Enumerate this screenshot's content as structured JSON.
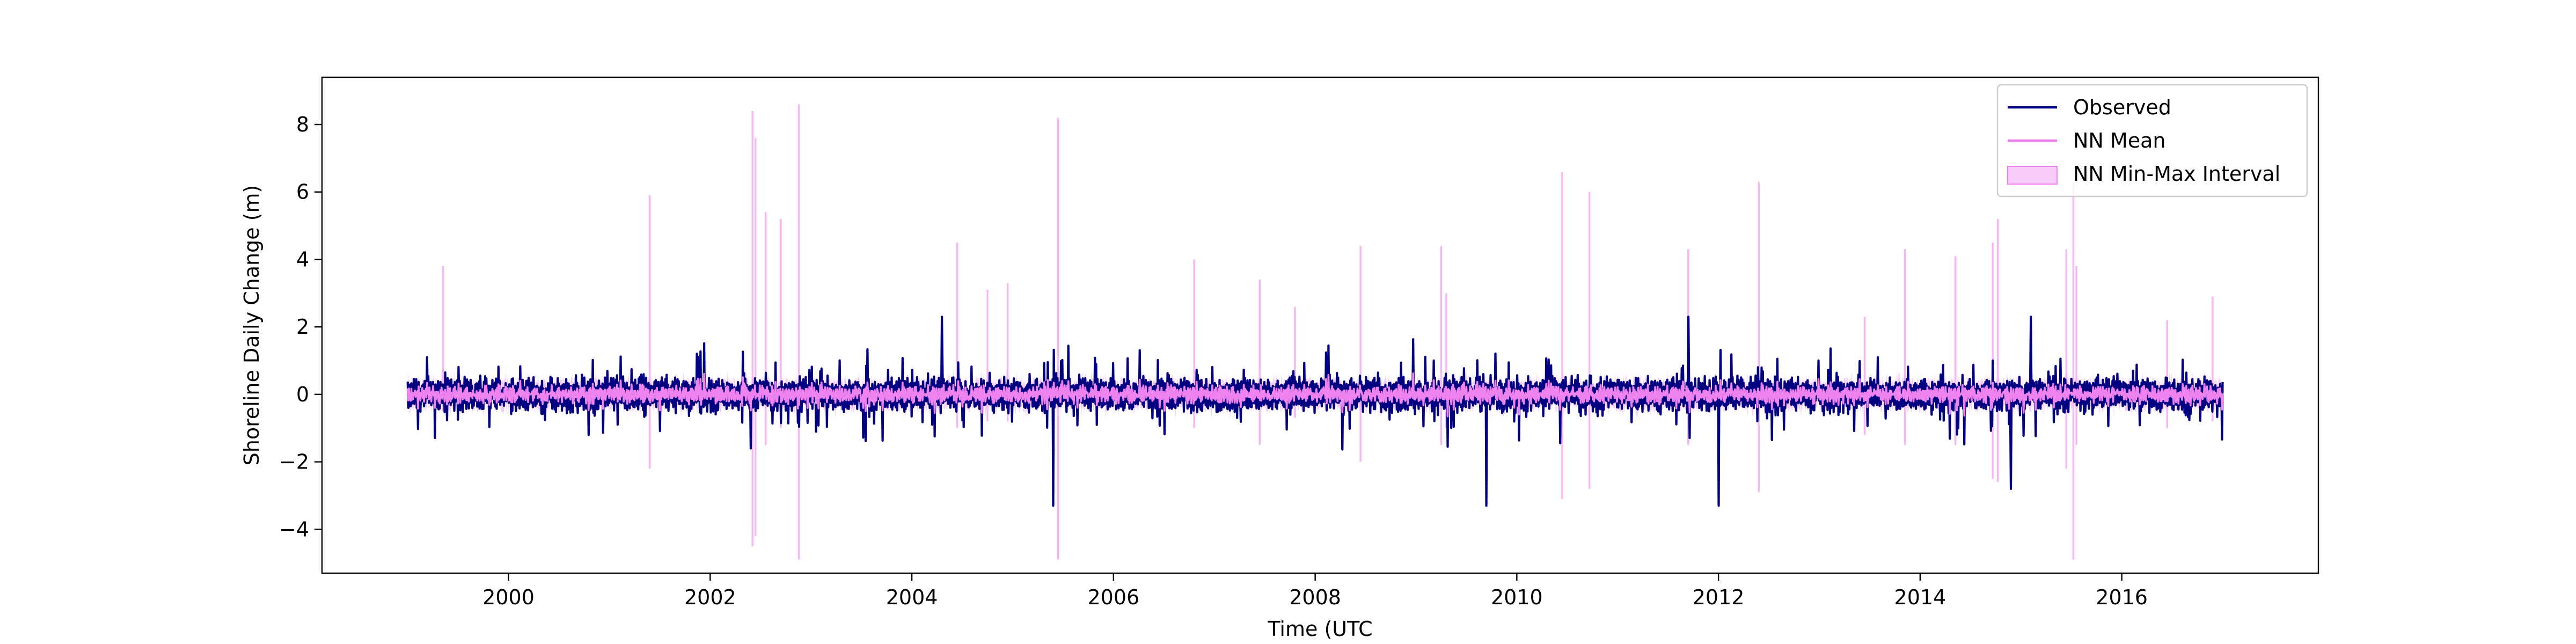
{
  "chart_data": {
    "type": "line",
    "title": "",
    "xlabel": "Time (UTC",
    "ylabel": "Shoreline Daily Change (m)",
    "xlim": [
      1998.15,
      2017.95
    ],
    "ylim": [
      -5.3,
      9.4
    ],
    "x_ticks": [
      2000,
      2002,
      2004,
      2006,
      2008,
      2010,
      2012,
      2014,
      2016
    ],
    "x_tick_labels": [
      "2000",
      "2002",
      "2004",
      "2006",
      "2008",
      "2010",
      "2012",
      "2014",
      "2016"
    ],
    "y_ticks": [
      -4,
      -2,
      0,
      2,
      4,
      6,
      8
    ],
    "y_tick_labels": [
      "−4",
      "−2",
      "0",
      "2",
      "4",
      "6",
      "8"
    ],
    "x_range": [
      1999.0,
      2017.0
    ],
    "grid": false,
    "legend_position": "top-right",
    "series": [
      {
        "name": "Observed",
        "kind": "line",
        "color": "#000080",
        "amplitude_note": "daily fluctuation, mostly within -2 to 2"
      },
      {
        "name": "NN Mean",
        "kind": "line",
        "color": "#ee82ee"
      },
      {
        "name": "NN Min-Max Interval",
        "kind": "band",
        "color": "#f5b8f5"
      }
    ],
    "observed_extremes": [
      {
        "x": 2005.4,
        "y": -3.3
      },
      {
        "x": 2009.7,
        "y": -3.3
      },
      {
        "x": 2012.0,
        "y": -3.3
      },
      {
        "x": 2014.9,
        "y": -2.8
      },
      {
        "x": 2004.3,
        "y": 2.3
      },
      {
        "x": 2011.7,
        "y": 2.3
      },
      {
        "x": 2015.1,
        "y": 2.3
      }
    ],
    "interval_spikes": [
      {
        "x": 1999.35,
        "low": -0.5,
        "high": 3.8
      },
      {
        "x": 2001.4,
        "low": -2.2,
        "high": 5.9
      },
      {
        "x": 2002.42,
        "low": -4.5,
        "high": 8.4
      },
      {
        "x": 2002.45,
        "low": -4.2,
        "high": 7.6
      },
      {
        "x": 2002.55,
        "low": -1.5,
        "high": 5.4
      },
      {
        "x": 2002.7,
        "low": -1.0,
        "high": 5.2
      },
      {
        "x": 2002.88,
        "low": -4.9,
        "high": 8.6
      },
      {
        "x": 2004.45,
        "low": -1.0,
        "high": 4.5
      },
      {
        "x": 2004.75,
        "low": -0.8,
        "high": 3.1
      },
      {
        "x": 2004.95,
        "low": -0.8,
        "high": 3.3
      },
      {
        "x": 2005.45,
        "low": -4.9,
        "high": 8.2
      },
      {
        "x": 2006.8,
        "low": -1.0,
        "high": 4.0
      },
      {
        "x": 2007.45,
        "low": -1.5,
        "high": 3.4
      },
      {
        "x": 2007.8,
        "low": -0.7,
        "high": 2.6
      },
      {
        "x": 2008.45,
        "low": -2.0,
        "high": 4.4
      },
      {
        "x": 2009.25,
        "low": -1.5,
        "high": 4.4
      },
      {
        "x": 2009.3,
        "low": -1.0,
        "high": 3.0
      },
      {
        "x": 2010.45,
        "low": -3.1,
        "high": 6.6
      },
      {
        "x": 2010.72,
        "low": -2.8,
        "high": 6.0
      },
      {
        "x": 2011.7,
        "low": -1.5,
        "high": 4.3
      },
      {
        "x": 2012.4,
        "low": -2.9,
        "high": 6.3
      },
      {
        "x": 2013.45,
        "low": -1.2,
        "high": 2.3
      },
      {
        "x": 2013.85,
        "low": -1.5,
        "high": 4.3
      },
      {
        "x": 2014.35,
        "low": -1.5,
        "high": 4.1
      },
      {
        "x": 2014.72,
        "low": -2.5,
        "high": 4.5
      },
      {
        "x": 2014.77,
        "low": -2.6,
        "high": 5.2
      },
      {
        "x": 2015.45,
        "low": -2.2,
        "high": 4.3
      },
      {
        "x": 2015.52,
        "low": -4.9,
        "high": 6.3
      },
      {
        "x": 2015.55,
        "low": -1.5,
        "high": 3.8
      },
      {
        "x": 2016.45,
        "low": -1.0,
        "high": 2.2
      },
      {
        "x": 2016.9,
        "low": -0.8,
        "high": 2.9
      }
    ]
  }
}
